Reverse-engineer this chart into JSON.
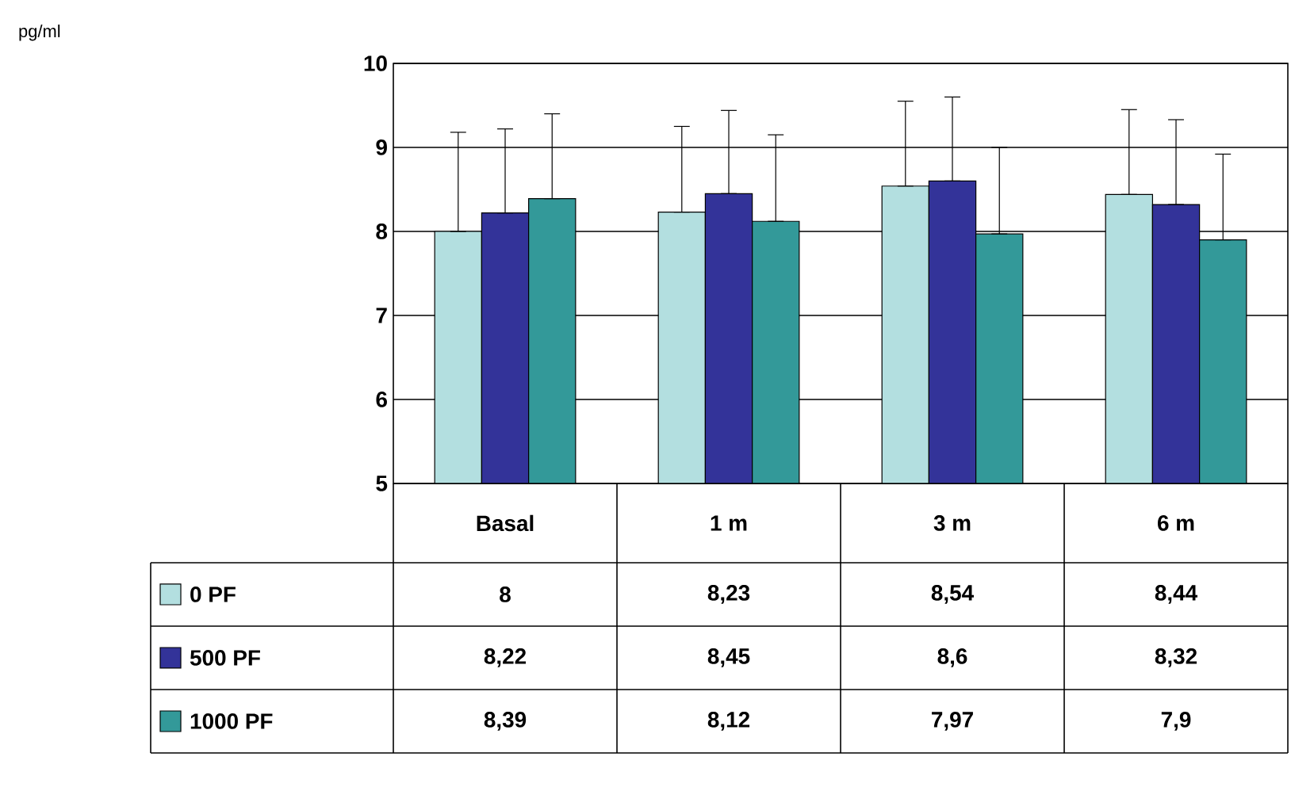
{
  "chart_data": {
    "type": "bar",
    "annotations": [
      "pg/ml"
    ],
    "categories": [
      "Basal",
      "1 m",
      "3 m",
      "6 m"
    ],
    "series": [
      {
        "name": "0 PF",
        "color": "#b3dfe0",
        "values": [
          8,
          8.23,
          8.54,
          8.44
        ],
        "value_labels": [
          "8",
          "8,23",
          "8,54",
          "8,44"
        ],
        "errors": [
          [
            8,
            9.18
          ],
          [
            8.23,
            9.25
          ],
          [
            8.54,
            9.55
          ],
          [
            8.44,
            9.45
          ]
        ]
      },
      {
        "name": "500 PF",
        "color": "#333399",
        "values": [
          8.22,
          8.45,
          8.6,
          8.32
        ],
        "value_labels": [
          "8,22",
          "8,45",
          "8,6",
          "8,32"
        ],
        "errors": [
          [
            8.22,
            9.22
          ],
          [
            8.45,
            9.44
          ],
          [
            8.6,
            9.6
          ],
          [
            8.32,
            9.33
          ]
        ]
      },
      {
        "name": "1000 PF",
        "color": "#339999",
        "values": [
          8.39,
          8.12,
          7.97,
          7.9
        ],
        "value_labels": [
          "8,39",
          "8,12",
          "7,97",
          "7,9"
        ],
        "errors": [
          [
            8.39,
            9.4
          ],
          [
            8.12,
            9.15
          ],
          [
            7.97,
            9.0
          ],
          [
            7.9,
            8.92
          ]
        ]
      }
    ],
    "ylim": [
      5,
      10
    ],
    "yticks": [
      5,
      6,
      7,
      8,
      9,
      10
    ],
    "grid": "y",
    "legend": "bottom left"
  }
}
